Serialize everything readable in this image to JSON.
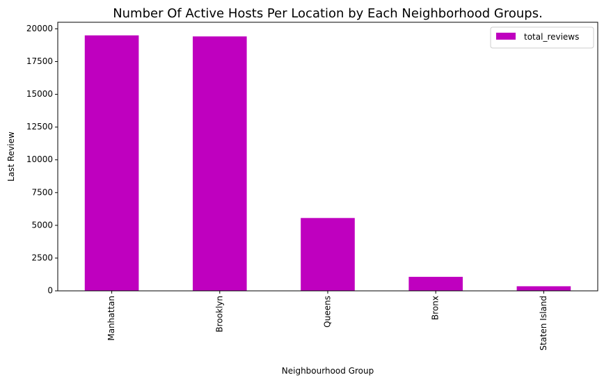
{
  "chart_data": {
    "type": "bar",
    "title": "Number Of Active Hosts Per Location by Each Neighborhood Groups.",
    "xlabel": "Neighbourhood Group",
    "ylabel": "Last Review",
    "categories": [
      "Manhattan",
      "Brooklyn",
      "Queens",
      "Bronx",
      "Staten Island"
    ],
    "series": [
      {
        "name": "total_reviews",
        "values": [
          19500,
          19420,
          5560,
          1070,
          350
        ],
        "color": "#bf00bf"
      }
    ],
    "ylim": [
      0,
      20500
    ],
    "yticks": [
      0,
      2500,
      5000,
      7500,
      10000,
      12500,
      15000,
      17500,
      20000
    ],
    "grid": false,
    "legend_position": "top-right"
  }
}
